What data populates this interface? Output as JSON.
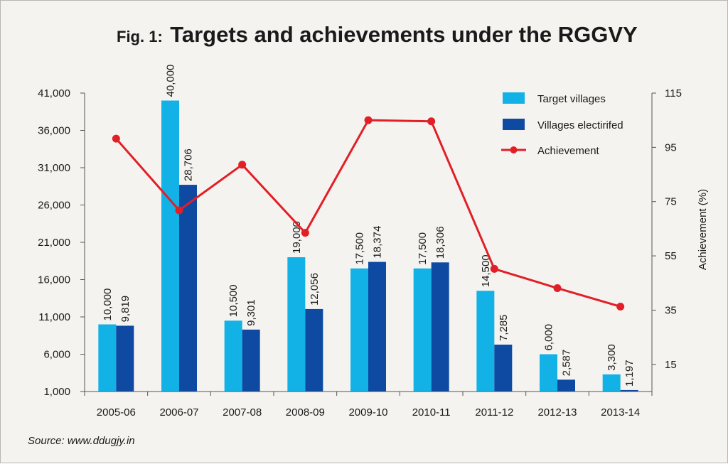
{
  "chart_data": {
    "type": "bar",
    "title_prefix": "Fig. 1:",
    "title": "Targets and achievements under the RGGVY",
    "categories": [
      "2005-06",
      "2006-07",
      "2007-08",
      "2008-09",
      "2009-10",
      "2010-11",
      "2011-12",
      "2012-13",
      "2013-14"
    ],
    "series": [
      {
        "name": "Target villages",
        "color": "#12b2e6",
        "values": [
          10000,
          40000,
          10500,
          19000,
          17500,
          17500,
          14500,
          6000,
          3300
        ],
        "labels": [
          "10,000",
          "40,000",
          "10,500",
          "19,000",
          "17,500",
          "17,500",
          "14,500",
          "6,000",
          "3,300"
        ]
      },
      {
        "name": "Villages electirifed",
        "color": "#0e4aa2",
        "values": [
          9819,
          28706,
          9301,
          12056,
          18374,
          18306,
          7285,
          2587,
          1197
        ],
        "labels": [
          "9,819",
          "28,706",
          "9,301",
          "12,056",
          "18,374",
          "18,306",
          "7,285",
          "2,587",
          "1,197"
        ]
      }
    ],
    "line_series": {
      "name": "Achievement",
      "color": "#e11f26",
      "axis": "right",
      "values": [
        98.2,
        71.8,
        88.6,
        63.5,
        105.0,
        104.6,
        50.2,
        43.1,
        36.3
      ]
    },
    "y_left": {
      "min": 1000,
      "max": 41000,
      "ticks": [
        41000,
        36000,
        31000,
        26000,
        21000,
        16000,
        11000,
        6000,
        1000
      ],
      "tick_labels": [
        "41,000",
        "36,000",
        "31,000",
        "26,000",
        "21,000",
        "16,000",
        "11,000",
        "6,000",
        "1,000"
      ],
      "label": ""
    },
    "y_right": {
      "min": 5,
      "max": 115,
      "ticks": [
        115,
        95,
        75,
        55,
        35,
        15
      ],
      "tick_labels": [
        "115",
        "95",
        "75",
        "55",
        "35",
        "15"
      ],
      "label": "Achievement (%)"
    },
    "xlabel": "",
    "grid": false,
    "legend_position": "top-right",
    "source": "Source: www.ddugjy.in"
  }
}
